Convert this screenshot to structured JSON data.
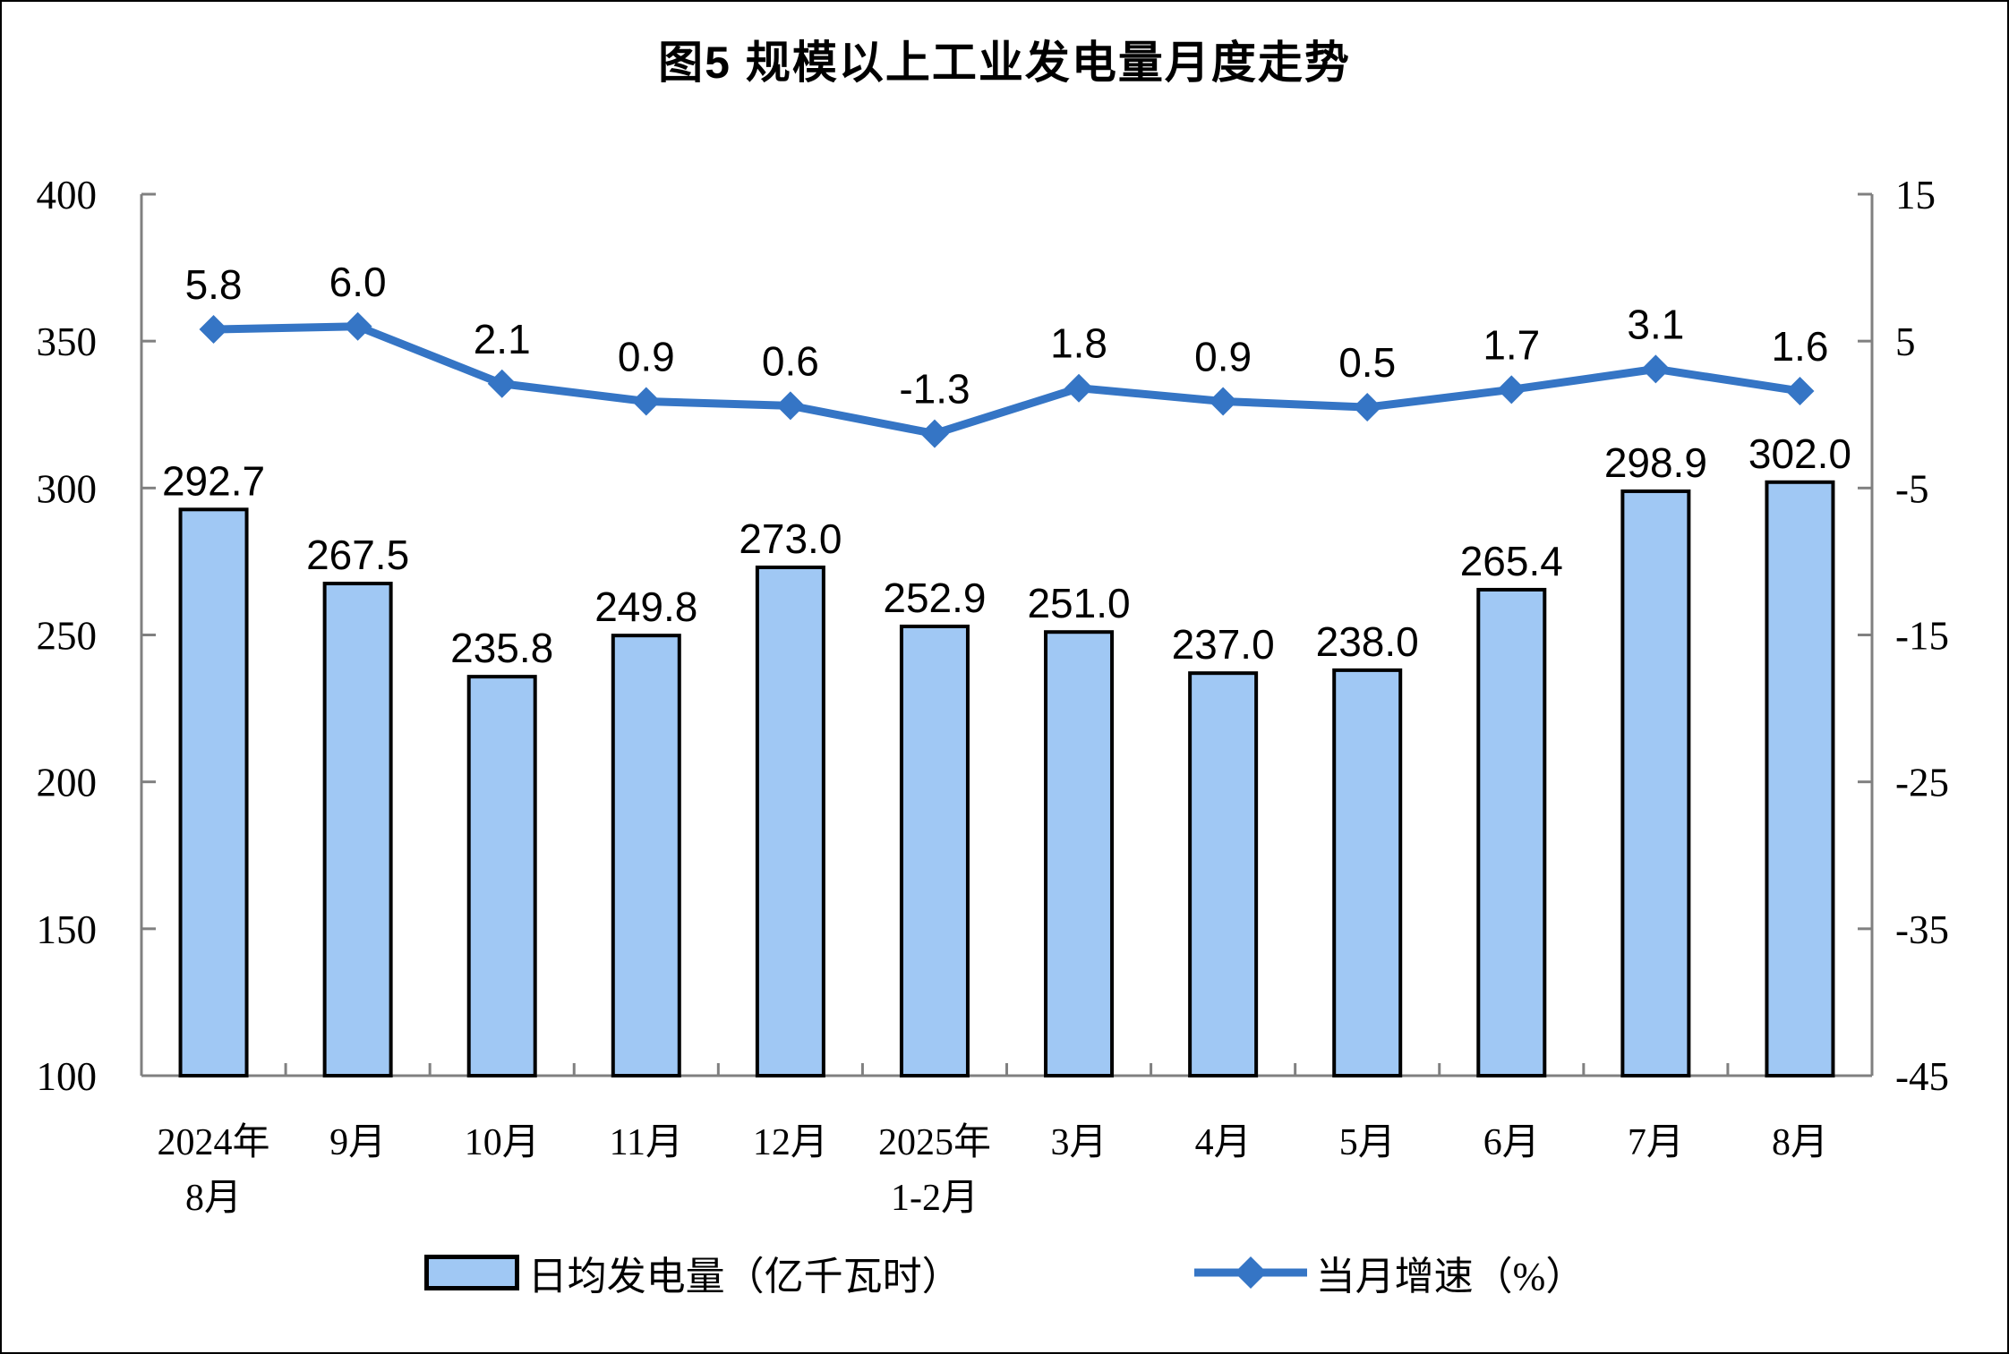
{
  "page_title": "图5 规模以上工业发电量月度走势",
  "chart_data": {
    "type": "bar",
    "combo": "bar+line",
    "title": "图5 规模以上工业发电量月度走势",
    "categories": [
      [
        "2024年",
        "8月"
      ],
      [
        "9月"
      ],
      [
        "10月"
      ],
      [
        "11月"
      ],
      [
        "12月"
      ],
      [
        "2025年",
        "1-2月"
      ],
      [
        "3月"
      ],
      [
        "4月"
      ],
      [
        "5月"
      ],
      [
        "6月"
      ],
      [
        "7月"
      ],
      [
        "8月"
      ]
    ],
    "series": [
      {
        "name": "日均发电量（亿千瓦时）",
        "type": "bar",
        "axis": "left",
        "values": [
          292.7,
          267.5,
          235.8,
          249.8,
          273.0,
          252.9,
          251.0,
          237.0,
          238.0,
          265.4,
          298.9,
          302.0
        ],
        "labels": [
          "292.7",
          "267.5",
          "235.8",
          "249.8",
          "273.0",
          "252.9",
          "251.0",
          "237.0",
          "238.0",
          "265.4",
          "298.9",
          "302.0"
        ],
        "fill_color": "#A0C8F4",
        "border_color": "#000000"
      },
      {
        "name": "当月增速（%）",
        "type": "line",
        "axis": "right",
        "values": [
          5.8,
          6.0,
          2.1,
          0.9,
          0.6,
          -1.3,
          1.8,
          0.9,
          0.5,
          1.7,
          3.1,
          1.6
        ],
        "labels": [
          "5.8",
          "6.0",
          "2.1",
          "0.9",
          "0.6",
          "-1.3",
          "1.8",
          "0.9",
          "0.5",
          "1.7",
          "3.1",
          "1.6"
        ],
        "color": "#3575C5",
        "marker": "diamond"
      }
    ],
    "left_axis": {
      "min": 100,
      "max": 400,
      "step": 50,
      "ticks": [
        "400",
        "350",
        "300",
        "250",
        "200",
        "150",
        "100"
      ]
    },
    "right_axis": {
      "min": -45,
      "max": 15,
      "step": 10,
      "ticks": [
        "15",
        "5",
        "-5",
        "-15",
        "-25",
        "-35",
        "-45"
      ]
    },
    "axis_color": "#808080",
    "grid": false,
    "legend_position": "bottom",
    "ylabel": "",
    "xlabel": ""
  },
  "legend": {
    "bar_label": "日均发电量（亿千瓦时）",
    "line_label": "当月增速（%）"
  }
}
